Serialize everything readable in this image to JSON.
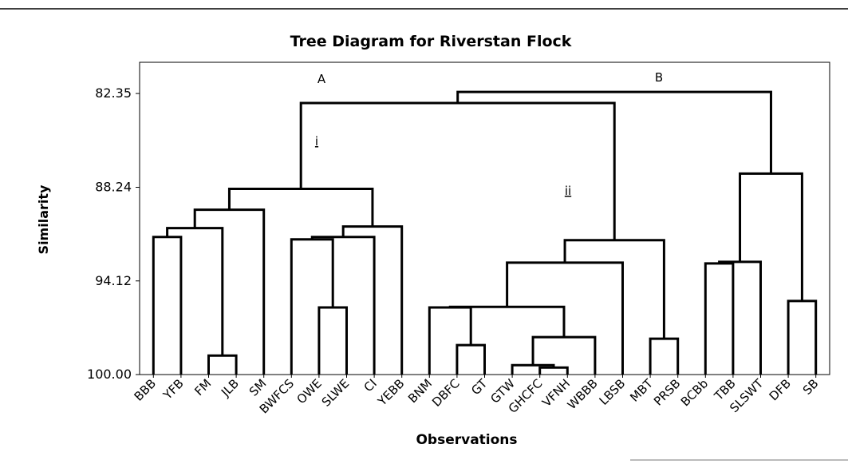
{
  "chart_data": {
    "type": "dendrogram",
    "title": "Tree Diagram for Riverstan Flock",
    "xlabel": "Observations",
    "ylabel": "Similarity",
    "annotations": [
      "A",
      "B",
      "i",
      "ii"
    ],
    "categories": [
      "BBB",
      "YFB",
      "FM",
      "JLB",
      "SM",
      "BWFCS",
      "OWE",
      "SLWE",
      "CI",
      "YEBB",
      "BNM",
      "DBFC",
      "GT",
      "GTW",
      "GHCFC",
      "VFNH",
      "WBBB",
      "LBSB",
      "MBT",
      "PRSB",
      "BCBb",
      "TBB",
      "SLSWT",
      "DFB",
      "SB"
    ],
    "merges": [
      {
        "left": 0,
        "right": 1,
        "value": 91.36
      },
      {
        "left": 2,
        "right": 3,
        "value": 98.81
      },
      {
        "left": 25,
        "right": 26,
        "value": 90.8
      },
      {
        "left": 27,
        "right": 4,
        "value": 89.65
      },
      {
        "left": 6,
        "right": 7,
        "value": 95.79
      },
      {
        "left": 5,
        "right": 29,
        "value": 91.51
      },
      {
        "left": 30,
        "right": 8,
        "value": 91.36
      },
      {
        "left": 31,
        "right": 9,
        "value": 90.7
      },
      {
        "left": 28,
        "right": 32,
        "value": 88.34
      },
      {
        "left": 11,
        "right": 12,
        "value": 98.15
      },
      {
        "left": 14,
        "right": 15,
        "value": 99.56
      },
      {
        "left": 13,
        "right": 35,
        "value": 99.41
      },
      {
        "left": 36,
        "right": 16,
        "value": 97.65
      },
      {
        "left": 10,
        "right": 34,
        "value": 95.79
      },
      {
        "left": 38,
        "right": 37,
        "value": 95.75
      },
      {
        "left": 39,
        "right": 17,
        "value": 92.97
      },
      {
        "left": 18,
        "right": 19,
        "value": 97.75
      },
      {
        "left": 40,
        "right": 41,
        "value": 91.56
      },
      {
        "left": 33,
        "right": 42,
        "value": 82.95
      },
      {
        "left": 20,
        "right": 21,
        "value": 93.02
      },
      {
        "left": 44,
        "right": 22,
        "value": 92.92
      },
      {
        "left": 23,
        "right": 24,
        "value": 95.38
      },
      {
        "left": 45,
        "right": 46,
        "value": 87.38
      },
      {
        "left": 43,
        "right": 47,
        "value": 82.25
      }
    ],
    "ylim": [
      100,
      80.39
    ],
    "yticks": [
      82.35,
      88.24,
      94.12,
      {
        "value": 100,
        "label": "100.00"
      }
    ],
    "color": "#000000"
  }
}
